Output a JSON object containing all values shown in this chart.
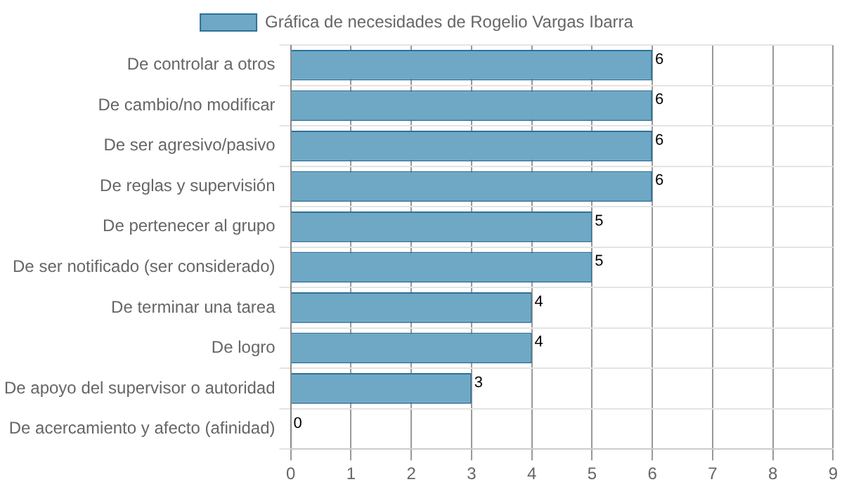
{
  "chart_data": {
    "type": "bar",
    "orientation": "horizontal",
    "categories": [
      "De controlar a otros",
      "De cambio/no modificar",
      "De ser agresivo/pasivo",
      "De reglas y supervisión",
      "De pertenecer al grupo",
      "De ser notificado (ser considerado)",
      "De terminar una tarea",
      "De logro",
      "De apoyo del supervisor o autoridad",
      "De acercamiento y afecto (afinidad)"
    ],
    "series": [
      {
        "name": "Gráfica de necesidades de Rogelio Vargas Ibarra",
        "color": "#6ea8c5",
        "values": [
          6,
          6,
          6,
          6,
          5,
          5,
          4,
          4,
          3,
          0
        ]
      }
    ],
    "xlim": [
      0,
      9
    ],
    "xticks": [
      0,
      1,
      2,
      3,
      4,
      5,
      6,
      7,
      8,
      9
    ],
    "grid": true,
    "legend": "top",
    "data_labels": true
  }
}
